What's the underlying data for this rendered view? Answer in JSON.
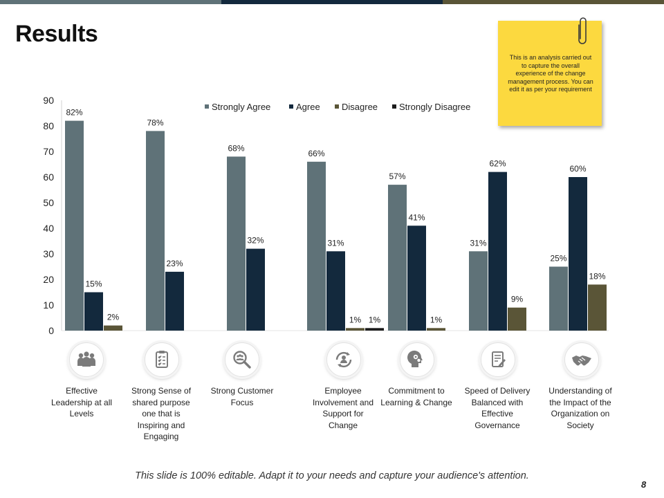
{
  "slide": {
    "title": "Results",
    "footer": "This slide is 100% editable. Adapt it to your needs and capture your audience's attention.",
    "page_number": "8",
    "top_bar_colors": [
      "#5f7278",
      "#13293d",
      "#5a5537"
    ]
  },
  "sticky_note": {
    "text": "This is an analysis carried out to capture the overall experience of the change management process. You can edit it as per your requirement",
    "color": "#fcd93f",
    "icon": "paperclip-icon"
  },
  "chart_data": {
    "type": "bar",
    "title": "",
    "xlabel": "",
    "ylabel": "",
    "ylim": [
      0,
      90
    ],
    "yticks": [
      0,
      10,
      20,
      30,
      40,
      50,
      60,
      70,
      80,
      90
    ],
    "grid": false,
    "legend_position": "top",
    "categories": [
      "Effective Leadership at all Levels",
      "Strong Sense of shared purpose one that is Inspiring and Engaging",
      "Strong Customer Focus",
      "Employee Involvement and Support for Change",
      "Commitment to Learning & Change",
      "Speed of Delivery Balanced with Effective Governance",
      "Understanding of the Impact of the Organization on Society"
    ],
    "series": [
      {
        "name": "Strongly Agree",
        "color": "#5f7278",
        "values": [
          82,
          78,
          68,
          66,
          57,
          31,
          25
        ],
        "labels": [
          "82%",
          "78%",
          "68%",
          "66%",
          "57%",
          "31%",
          "25%"
        ]
      },
      {
        "name": "Agree",
        "color": "#13293d",
        "values": [
          15,
          23,
          32,
          31,
          41,
          62,
          60
        ],
        "labels": [
          "15%",
          "23%",
          "32%",
          "31%",
          "41%",
          "62%",
          "60%"
        ]
      },
      {
        "name": "Disagree",
        "color": "#5a5537",
        "values": [
          2,
          null,
          null,
          1,
          1,
          9,
          18
        ],
        "labels": [
          "2%",
          null,
          null,
          "1%",
          "1%",
          "9%",
          "18%"
        ]
      },
      {
        "name": "Strongly Disagree",
        "color": "#1c1c1c",
        "values": [
          null,
          null,
          null,
          1,
          null,
          null,
          null
        ],
        "labels": [
          null,
          null,
          null,
          "1%",
          null,
          null,
          null
        ]
      }
    ]
  },
  "columns": [
    {
      "icon": "team-icon",
      "caption": "Effective Leadership at all Levels"
    },
    {
      "icon": "clipboard-checklist-icon",
      "caption": "Strong Sense of shared purpose one that is Inspiring and Engaging"
    },
    {
      "icon": "magnifier-people-icon",
      "caption": "Strong Customer Focus"
    },
    {
      "icon": "person-cycle-icon",
      "caption": "Employee Involvement and Support for Change"
    },
    {
      "icon": "head-gears-icon",
      "caption": "Commitment to Learning & Change"
    },
    {
      "icon": "document-edit-icon",
      "caption": "Speed of Delivery Balanced with Effective Governance"
    },
    {
      "icon": "handshake-icon",
      "caption": "Understanding of the Impact of the Organization on Society"
    }
  ]
}
